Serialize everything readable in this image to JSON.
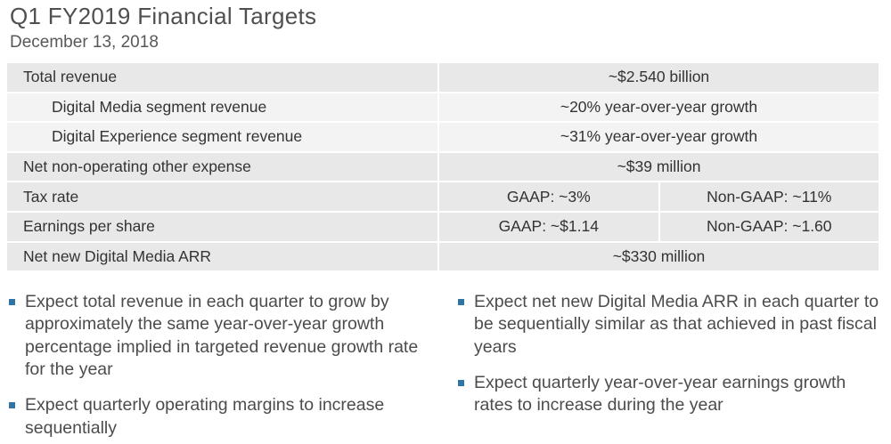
{
  "header": {
    "title": "Q1 FY2019 Financial Targets",
    "date": "December 13, 2018"
  },
  "table": {
    "rows": [
      {
        "label": "Total revenue",
        "value": "~$2.540 billion"
      },
      {
        "label": "Digital Media segment revenue",
        "value": "~20% year-over-year growth"
      },
      {
        "label": "Digital Experience segment revenue",
        "value": "~31% year-over-year growth"
      },
      {
        "label": "Net non-operating other expense",
        "value": "~$39 million"
      },
      {
        "label": "Tax rate",
        "split": {
          "left": "GAAP:  ~3%",
          "right": "Non-GAAP:  ~11%"
        }
      },
      {
        "label": "Earnings per share",
        "split": {
          "left": "GAAP:  ~$1.14",
          "right": "Non-GAAP:  ~1.60"
        }
      },
      {
        "label": "Net new Digital Media ARR",
        "value": "~$330 million"
      }
    ]
  },
  "bullets": {
    "left": [
      "Expect total revenue in each quarter to grow by approximately the same year-over-year growth percentage implied in targeted revenue growth rate for the year",
      "Expect quarterly operating margins to increase sequentially"
    ],
    "right": [
      "Expect net new Digital Media ARR in each quarter to be sequentially similar as that achieved in past fiscal years",
      "Expect quarterly year-over-year earnings growth rates to increase during the year"
    ]
  },
  "colors": {
    "row_background": "#e8e8e8",
    "row_background_light": "#f3f3f3",
    "bullet_marker": "#2e74a4",
    "text": "#333333"
  }
}
